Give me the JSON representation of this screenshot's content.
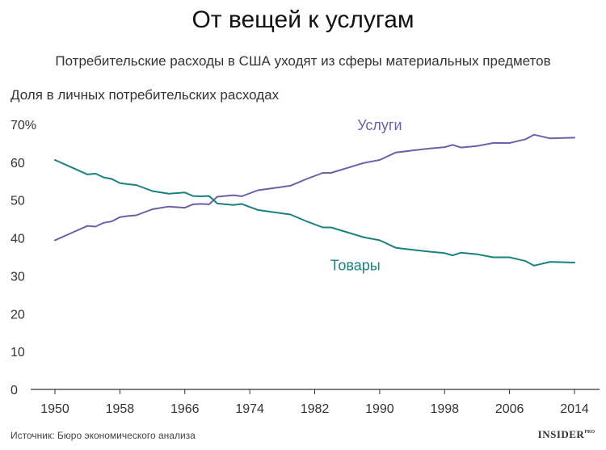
{
  "header": {
    "title": "От вещей к услугам",
    "subtitle": "Потребительские расходы в США уходят из сферы материальных предметов"
  },
  "footer": {
    "source": "Источник: Бюро экономического анализа",
    "brand": "INSIDER",
    "brand_sup": "PRO"
  },
  "chart_data": {
    "type": "line",
    "title": "От вещей к услугам",
    "subtitle": "Потребительские расходы в США уходят из сферы материальных предметов",
    "ylabel": "Доля в личных потребительских расходах",
    "xlabel": "",
    "xlim": [
      1950,
      2014
    ],
    "ylim": [
      0,
      70
    ],
    "x_ticks": [
      1950,
      1958,
      1966,
      1974,
      1982,
      1990,
      1998,
      2006,
      2014
    ],
    "y_ticks": [
      0,
      10,
      20,
      30,
      40,
      50,
      60,
      70
    ],
    "y_tick_labels": [
      "0",
      "10",
      "20",
      "30",
      "40",
      "50",
      "60",
      "70%"
    ],
    "grid": false,
    "colors": {
      "services": "#6f5ea8",
      "goods": "#1a8080",
      "axis": "#333333"
    },
    "series": [
      {
        "name": "Услуги",
        "color": "#6f5ea8",
        "x": [
          1950,
          1952,
          1954,
          1955,
          1956,
          1957,
          1958,
          1959,
          1960,
          1962,
          1964,
          1966,
          1967,
          1968,
          1969,
          1970,
          1972,
          1973,
          1975,
          1977,
          1979,
          1981,
          1983,
          1984,
          1986,
          1988,
          1990,
          1992,
          1994,
          1996,
          1998,
          1999,
          2000,
          2002,
          2004,
          2006,
          2008,
          2009,
          2011,
          2014
        ],
        "values": [
          39.4,
          41.3,
          43.2,
          43.0,
          44.0,
          44.4,
          45.5,
          45.8,
          46.0,
          47.6,
          48.3,
          48.0,
          48.9,
          49.0,
          48.9,
          50.9,
          51.3,
          51.0,
          52.6,
          53.2,
          53.8,
          55.6,
          57.2,
          57.2,
          58.5,
          59.8,
          60.6,
          62.6,
          63.1,
          63.6,
          64.0,
          64.6,
          63.9,
          64.3,
          65.1,
          65.1,
          66.1,
          67.3,
          66.3,
          66.5
        ]
      },
      {
        "name": "Товары",
        "color": "#1a8080",
        "x": [
          1950,
          1952,
          1954,
          1955,
          1956,
          1957,
          1958,
          1959,
          1960,
          1962,
          1964,
          1966,
          1967,
          1968,
          1969,
          1970,
          1972,
          1973,
          1975,
          1977,
          1979,
          1981,
          1983,
          1984,
          1986,
          1988,
          1990,
          1992,
          1994,
          1996,
          1998,
          1999,
          2000,
          2002,
          2004,
          2006,
          2008,
          2009,
          2011,
          2014
        ],
        "values": [
          60.6,
          58.7,
          56.8,
          57.0,
          56.0,
          55.6,
          54.5,
          54.2,
          54.0,
          52.4,
          51.7,
          52.0,
          51.1,
          51.0,
          51.1,
          49.1,
          48.7,
          49.0,
          47.4,
          46.8,
          46.2,
          44.4,
          42.8,
          42.8,
          41.5,
          40.2,
          39.4,
          37.4,
          36.9,
          36.4,
          36.0,
          35.4,
          36.1,
          35.7,
          34.9,
          34.9,
          33.9,
          32.7,
          33.7,
          33.5
        ]
      }
    ],
    "annotations": [
      {
        "series": "Услуги",
        "text": "Услуги",
        "x": 1990,
        "y": 68.5
      },
      {
        "series": "Товары",
        "text": "Товары",
        "x": 1987,
        "y": 31.5
      }
    ]
  }
}
